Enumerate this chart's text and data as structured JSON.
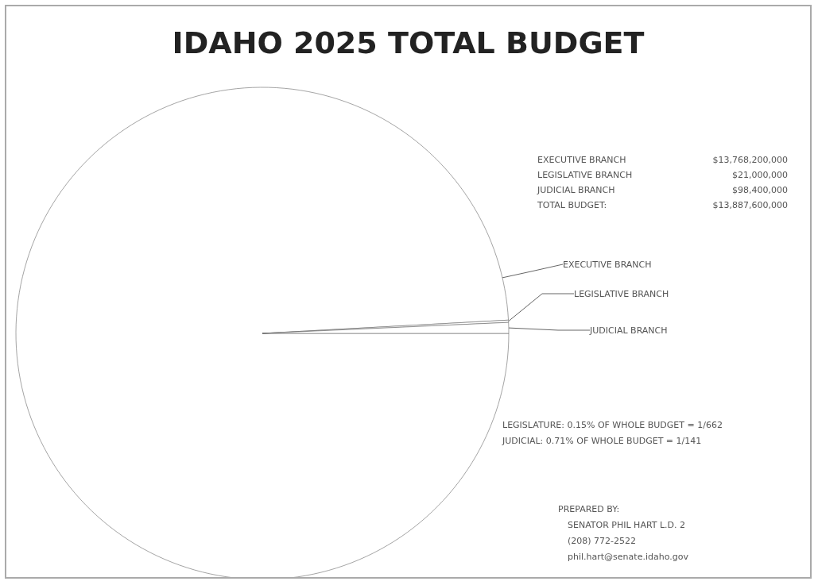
{
  "chart_data": {
    "type": "pie",
    "title": "IDAHO 2025 TOTAL BUDGET",
    "categories": [
      "EXECUTIVE BRANCH",
      "LEGISLATIVE BRANCH",
      "JUDICIAL BRANCH"
    ],
    "values": [
      99.14,
      0.15,
      0.71
    ],
    "colors": [
      "#ffffff",
      "#ffffff",
      "#ffffff"
    ],
    "annotations": [
      "$13,768,200,000",
      "$21,000,000",
      "$98,400,000",
      "TOTAL BUDGET:",
      "$13,887,600,000",
      "LEGISLATURE: 0.15% OF WHOLE BUDGET = 1/662",
      "JUDICIAL: 0.71% OF WHOLE BUDGET = 1/141",
      "PREPARED BY:",
      "SENATOR PHIL HART L.D. 2",
      "(208) 772-2522",
      "phil.hart@senate.idaho.gov"
    ]
  }
}
